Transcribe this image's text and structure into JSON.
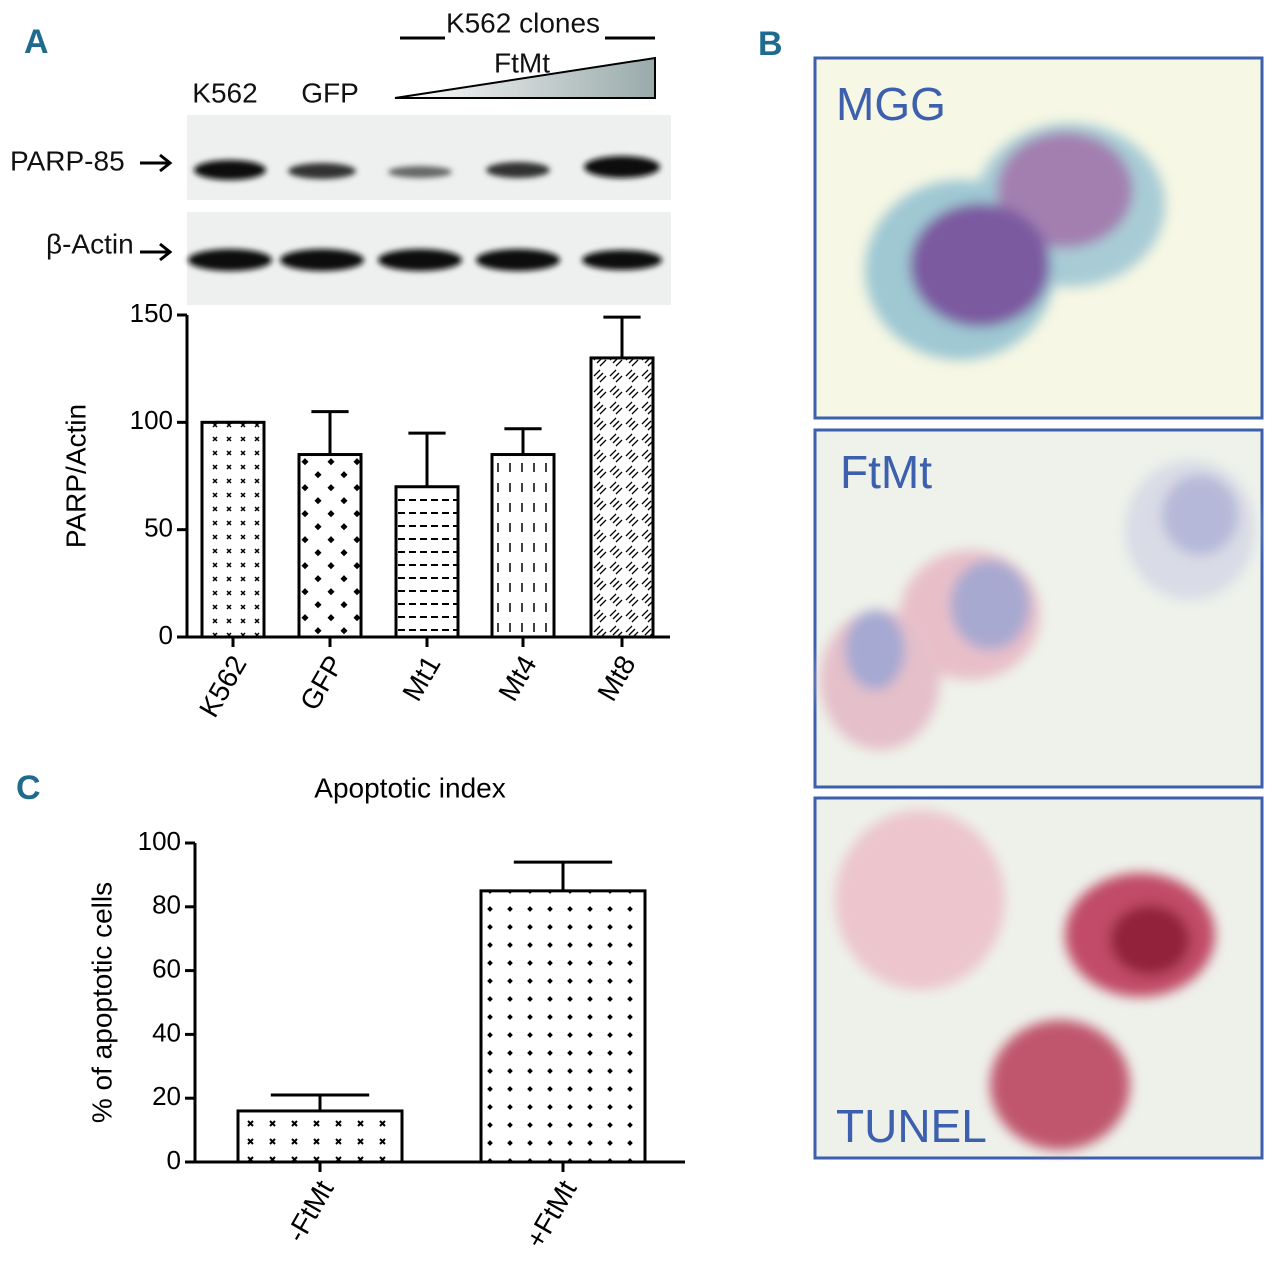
{
  "panels": {
    "a": "A",
    "b": "B",
    "c": "C"
  },
  "blot": {
    "lanes": [
      "K562",
      "GFP"
    ],
    "group": "K562 clones",
    "gradient_label": "FtMt",
    "rows": [
      "PARP-85",
      "β-Actin"
    ]
  },
  "micrographs": [
    "MGG",
    "FtMt",
    "TUNEL"
  ],
  "chart_data": [
    {
      "type": "bar",
      "y_label": "PARP/Actin",
      "categories": [
        "K562",
        "GFP",
        "Mt1",
        "Mt4",
        "Mt8"
      ],
      "values": [
        100,
        85,
        70,
        85,
        130
      ],
      "errors": [
        0,
        20,
        25,
        12,
        19
      ],
      "ylim": [
        0,
        150
      ],
      "yticks": [
        0,
        50,
        100,
        150
      ]
    },
    {
      "type": "bar",
      "title": "Apoptotic index",
      "y_label": "% of apoptotic cells",
      "categories": [
        "-FtMt",
        "+FtMt"
      ],
      "values": [
        16,
        85
      ],
      "errors": [
        5,
        9
      ],
      "ylim": [
        0,
        100
      ],
      "yticks": [
        0,
        20,
        40,
        60,
        80,
        100
      ]
    }
  ]
}
